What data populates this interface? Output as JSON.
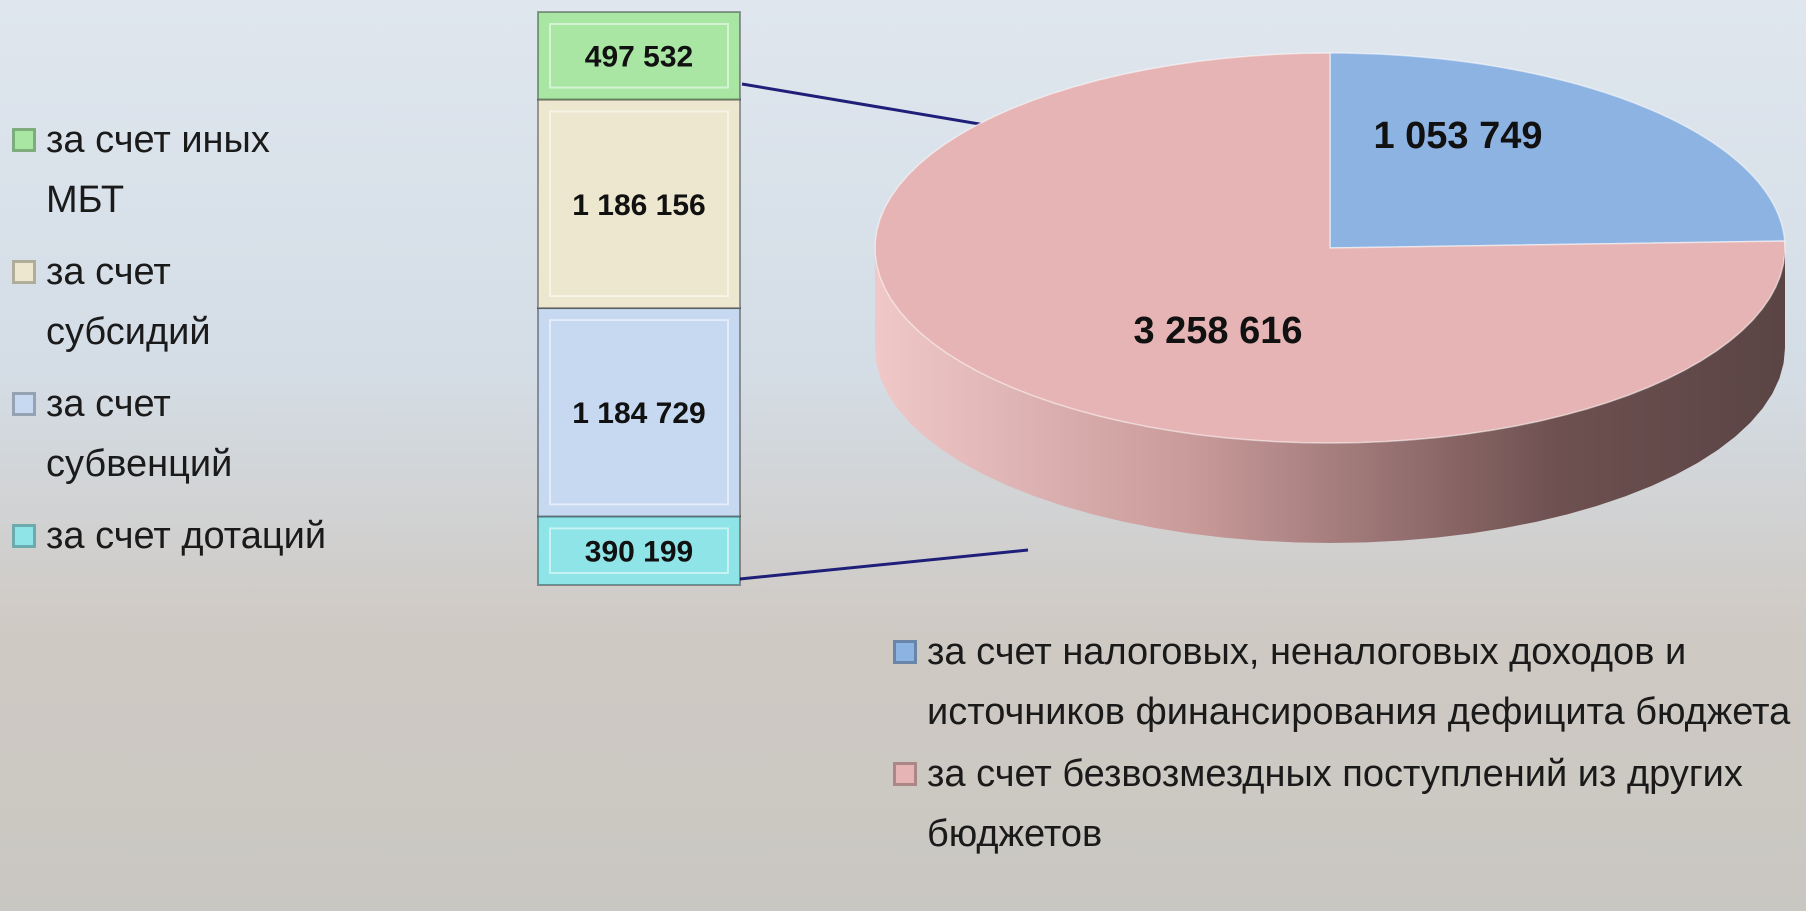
{
  "chart_data": [
    {
      "type": "stacked-column",
      "series": [
        {
          "name": "за счет дотаций",
          "color": "#8fe4e8",
          "values": [
            390199
          ],
          "value_labels": [
            "390 199"
          ]
        },
        {
          "name": "за счет субвенций",
          "color": "#c6d9f1",
          "values": [
            1184729
          ],
          "value_labels": [
            "1 184 729"
          ]
        },
        {
          "name": "за счет субсидий",
          "color": "#ede7cf",
          "values": [
            1186156
          ],
          "value_labels": [
            "1 186 156"
          ]
        },
        {
          "name": "за счет иных МБТ",
          "color": "#a9e6a4",
          "values": [
            497532
          ],
          "value_labels": [
            "497 532"
          ]
        }
      ]
    },
    {
      "type": "pie",
      "categories": [
        "за счет налоговых, неналоговых доходов и источников финансирования дефицита бюджета",
        "за счет безвозмездных поступлений из других бюджетов"
      ],
      "values": [
        1053749,
        3258616
      ],
      "value_labels": [
        "1 053 749",
        "3 258 616"
      ],
      "colors": [
        "#8db3e2",
        "#e6b4b4"
      ]
    }
  ]
}
